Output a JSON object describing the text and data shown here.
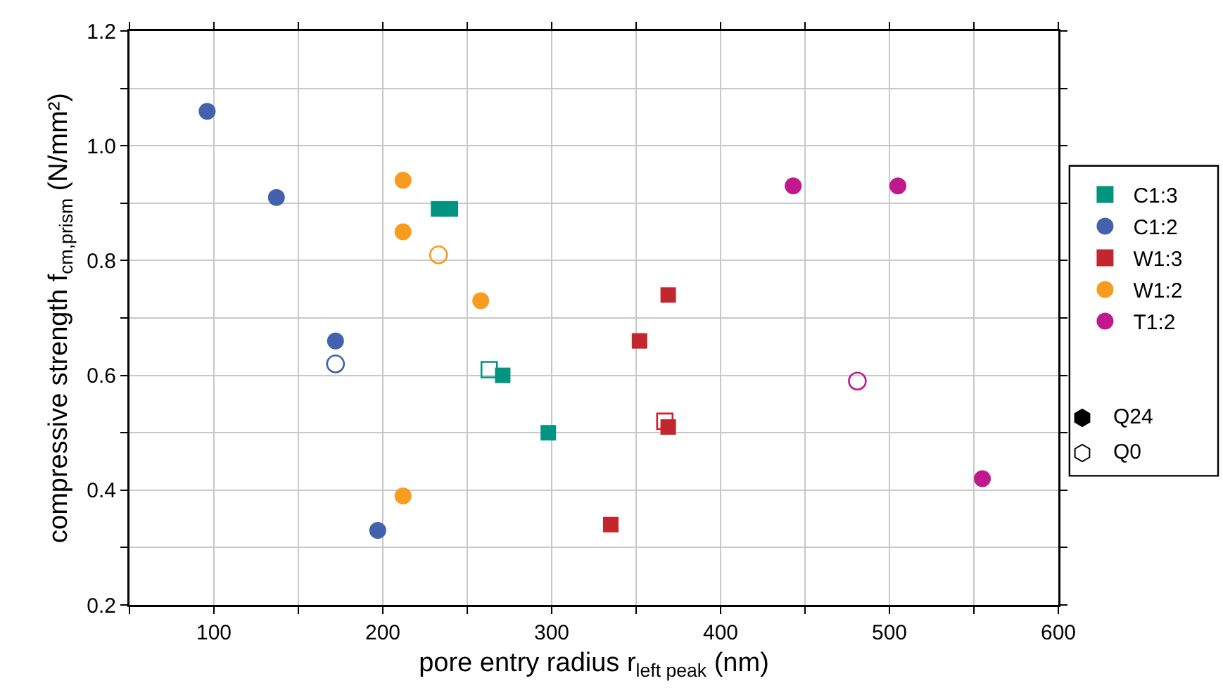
{
  "chart_data": {
    "type": "scatter",
    "xlabel": "pore entry radius r$_{left peak}$ (nm)",
    "ylabel": "compressive strength f$_{cm,prism}$ (N/mm²)",
    "xlim": [
      50,
      600
    ],
    "xticks": [
      {
        "value": 50,
        "label": null
      },
      100,
      {
        "value": 150,
        "label": null
      },
      200,
      {
        "value": 250,
        "label": null
      },
      300,
      {
        "value": 350,
        "label": null
      },
      400,
      {
        "value": 450,
        "label": null
      },
      500,
      {
        "value": 550,
        "label": null
      },
      600
    ],
    "ylim": [
      0.2,
      1.2
    ],
    "yticks": [
      0.2,
      {
        "value": 0.3,
        "label": null
      },
      0.4,
      {
        "value": 0.5,
        "label": null
      },
      0.6,
      {
        "value": 0.7,
        "label": null
      },
      0.8,
      {
        "value": 0.9,
        "label": null
      },
      {
        "value": 1.0,
        "label": "1.0"
      },
      {
        "value": 1.1,
        "label": null
      },
      1.2
    ],
    "grid": true,
    "legend": "right",
    "annotations": [
      "Q24",
      "Q0"
    ],
    "series": [
      {
        "name": "C1:3",
        "color": "#009481",
        "marker": "square",
        "x": [
          233,
          240,
          271,
          298
        ],
        "values": [
          0.89,
          0.89,
          0.6,
          0.5
        ]
      },
      {
        "name": "C1:2",
        "color": "#4262ad",
        "marker": "circle",
        "x": [
          96,
          137,
          172,
          197
        ],
        "values": [
          1.06,
          0.91,
          0.66,
          0.33
        ]
      },
      {
        "name": "W1:3",
        "color": "#c4262e",
        "marker": "square",
        "x": [
          369,
          352,
          369,
          335
        ],
        "values": [
          0.74,
          0.66,
          0.51,
          0.34
        ]
      },
      {
        "name": "W1:2",
        "color": "#f89c20",
        "marker": "circle",
        "x": [
          212,
          212,
          258,
          212
        ],
        "values": [
          0.94,
          0.85,
          0.73,
          0.39
        ]
      },
      {
        "name": "T1:2",
        "color": "#c0198e",
        "marker": "circle",
        "x": [
          443,
          505,
          555
        ],
        "values": [
          0.93,
          0.93,
          0.42
        ]
      },
      {
        "color": "#009481",
        "marker": "square",
        "x": [
          263
        ],
        "values": [
          0.61
        ]
      },
      {
        "color": "#4262ad",
        "marker": "circle",
        "x": [
          172
        ],
        "values": [
          0.62
        ]
      },
      {
        "color": "#c4262e",
        "marker": "square",
        "x": [
          367
        ],
        "values": [
          0.52
        ]
      },
      {
        "color": "#f89c20",
        "marker": "circle",
        "x": [
          233
        ],
        "values": [
          0.81
        ]
      },
      {
        "color": "#c0198e",
        "marker": "circle",
        "x": [
          481
        ],
        "values": [
          0.59
        ]
      }
    ]
  }
}
